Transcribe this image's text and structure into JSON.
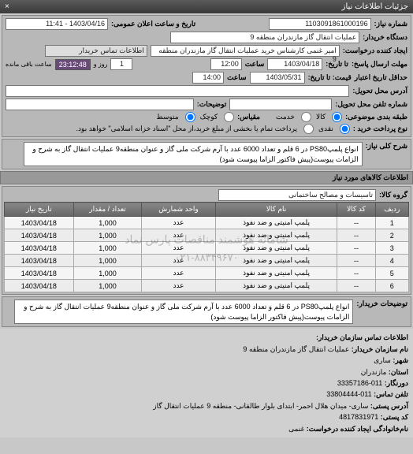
{
  "header": {
    "title": "جزئیات اطلاعات نیاز"
  },
  "top": {
    "req_no_label": "شماره نیاز:",
    "req_no": "1103091861000196",
    "pub_time_label": "تاریخ و ساعت اعلان عمومی:",
    "pub_time": "1403/04/16 - 11:41",
    "buyer_org_label": "دستگاه خریدار:",
    "buyer_org": "عملیات انتقال گاز مازندران منطقه 9",
    "requester_label": "ایجاد کننده درخواست:",
    "requester": "امیر غنمی کارشناس خرید عملیات انتقال گاز مازندران منطقه 9",
    "buyer_contact_label": "اطلاعات تماس خریدار",
    "resp_deadline_label": "مهلت ارسال پاسخ:",
    "resp_deadline_sub": "تا تاریخ:",
    "resp_date": "1403/04/18",
    "time_label": "ساعت",
    "resp_time": "12:00",
    "days": "1",
    "days_label": "روز و",
    "countdown": "23:12:48",
    "remaining_label": "ساعت باقی مانده",
    "valid_until_label": "حداقل تاریخ اعتبار",
    "valid_until_sub": "قیمت: تا تاریخ:",
    "valid_date": "1403/05/31",
    "valid_time": "14:00",
    "delivery_addr_label": "آدرس محل تحویل:",
    "delivery_addr": "",
    "phone_label": "شماره تلفن محل تحویل:",
    "notes_label": "توضیحات:",
    "group_label": "طبقه بندی موضوعی:",
    "opt_goods": "کالا",
    "opt_service": "خدمت",
    "scale_label": "مقیاس:",
    "opt_small": "کوچک",
    "opt_med": "متوسط",
    "payment_label": "نوع پرداخت خرید :",
    "opt_cash": "نقدی",
    "opt_credit": "پرداخت تمام یا بخشی از مبلغ خرید،از محل \"اسناد خزانه اسلامی\" خواهد بود."
  },
  "desc": {
    "label": "شرح کلی نیاز:",
    "text": "انواع پلمپPS80 در 6 قلم و تعداد 6000 عدد با آرم شرکت ملی گاز و عنوان منطقه9 عملیات انتقال گاز به شرح و الزامات پیوست(پیش فاکتور الزاما پیوست شود)"
  },
  "items": {
    "section_title": "اطلاعات کالاهای مورد نیاز",
    "group_label": "گروه کالا:",
    "group": "تاسیسات و مصالح ساختمانی",
    "cols": {
      "idx": "ردیف",
      "code": "کد کالا",
      "name": "نام کالا",
      "unit": "واحد شمارش",
      "qty": "تعداد / مقدار",
      "date": "تاریخ نیاز"
    },
    "rows": [
      {
        "idx": "1",
        "code": "--",
        "name": "پلمپ امنیتی و ضد نفوذ",
        "unit": "عدد",
        "qty": "1,000",
        "date": "1403/04/18"
      },
      {
        "idx": "2",
        "code": "--",
        "name": "پلمپ امنیتی و ضد نفوذ",
        "unit": "عدد",
        "qty": "1,000",
        "date": "1403/04/18"
      },
      {
        "idx": "3",
        "code": "--",
        "name": "پلمپ امنیتی و ضد نفوذ",
        "unit": "عدد",
        "qty": "1,000",
        "date": "1403/04/18"
      },
      {
        "idx": "4",
        "code": "--",
        "name": "پلمپ امنیتی و ضد نفوذ",
        "unit": "عدد",
        "qty": "1,000",
        "date": "1403/04/18"
      },
      {
        "idx": "5",
        "code": "--",
        "name": "پلمپ امنیتی و ضد نفوذ",
        "unit": "عدد",
        "qty": "1,000",
        "date": "1403/04/18"
      },
      {
        "idx": "6",
        "code": "--",
        "name": "پلمپ امنیتی و ضد نفوذ",
        "unit": "عدد",
        "qty": "1,000",
        "date": "1403/04/18"
      }
    ],
    "watermark": "سامانه هوشمند مناقصات پارس نماد",
    "watermark_phone": "۰۲۱-۸۸۳۴۹۶۷۰"
  },
  "buyer_notes": {
    "label": "توضیحات خریدار:",
    "text": "انواع پلمپPS80 در 6 قلم و تعداد 6000 عدد با آرم شرکت ملی گاز و عنوان منطقه9 عملیات انتقال گاز به شرح و الزامات پیوست(پیش فاکتور الزاما پیوست شود)"
  },
  "contact": {
    "title": "اطلاعات تماس سازمان خریدار:",
    "org_label": "نام سازمان خریدار:",
    "org": "عملیات انتقال گاز مازندران منطقه 9",
    "city_label": "شهر:",
    "city": "ساری",
    "state_label": "استان:",
    "state": "مازندران",
    "fax_label": "دورنگار:",
    "fax": "011-33357186",
    "phone_label": "تلفن تماس:",
    "phone": "011-33804444",
    "addr_label": "آدرس پستی:",
    "addr": "ساری- میدان هلال احمر- ابتدای بلوار طالقانی- منطقه 9 عملیات انتقال گاز",
    "post_label": "کد پستی:",
    "post": "4817831971",
    "creator_label": "نام‌خانوادگی ایجاد کننده درخواست:",
    "creator": "غنمی"
  }
}
